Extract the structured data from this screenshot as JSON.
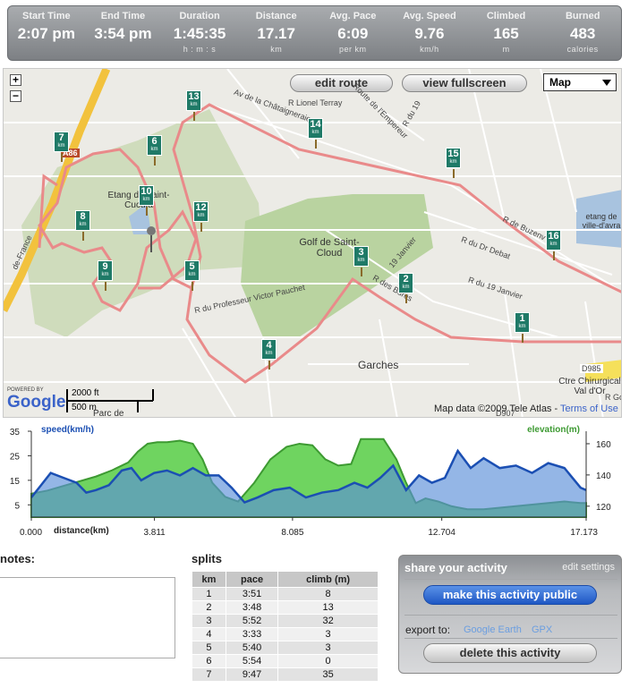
{
  "stats": [
    {
      "label": "Start Time",
      "value": "2:07 pm",
      "unit": ""
    },
    {
      "label": "End Time",
      "value": "3:54 pm",
      "unit": ""
    },
    {
      "label": "Duration",
      "value": "1:45:35",
      "unit": "h : m : s"
    },
    {
      "label": "Distance",
      "value": "17.17",
      "unit": "km"
    },
    {
      "label": "Avg. Pace",
      "value": "6:09",
      "unit": "per km"
    },
    {
      "label": "Avg. Speed",
      "value": "9.76",
      "unit": "km/h"
    },
    {
      "label": "Climbed",
      "value": "165",
      "unit": "m"
    },
    {
      "label": "Burned",
      "value": "483",
      "unit": "calories"
    }
  ],
  "map": {
    "edit_route": "edit route",
    "view_fullscreen": "view fullscreen",
    "map_type": "Map",
    "zoom_in": "+",
    "zoom_out": "−",
    "attribution": "Map data ©2009 Tele Atlas",
    "terms": "Terms of Use",
    "powered_by": "POWERED BY",
    "google": "Google",
    "scale_ft": "2000 ft",
    "scale_m": "500 m",
    "places": {
      "golf": "Golf de Saint-Cloud",
      "etang": "Etang de Saint-Cucufa",
      "garches": "Garches",
      "etang_ville": "etang de ville-d'avra",
      "ctre": "Ctre Chirurgical Val d'Or",
      "parc": "Parc de"
    },
    "streets": [
      "Av de la Châtaigneraie",
      "R Lionel Terray",
      "Route de l'Empereur",
      "R du 19",
      "R de Buzenv",
      "R du Dr Debat",
      "R du 19 Janvier",
      "R du Professeur Victor Pauchet",
      "R des Bures",
      "19 Janvier",
      "A86",
      "de-France",
      "D985",
      "D907",
      "R Gc"
    ],
    "markers": [
      "1",
      "2",
      "3",
      "4",
      "5",
      "6",
      "7",
      "8",
      "9",
      "10",
      "12",
      "13",
      "14",
      "15",
      "16"
    ],
    "marker_unit": "km"
  },
  "chart_data": {
    "type": "area",
    "x_axis_label": "distance(km)",
    "x_ticks": [
      "0.000",
      "3.811",
      "8.085",
      "12.704",
      "17.173"
    ],
    "x_range": [
      0,
      17.173
    ],
    "left_axis": {
      "label": "speed(km/h)",
      "ticks": [
        35,
        25,
        15,
        5
      ],
      "range": [
        0,
        35
      ]
    },
    "right_axis": {
      "label": "elevation(m)",
      "ticks": [
        160,
        140,
        120
      ],
      "range": [
        113,
        168
      ]
    },
    "series": [
      {
        "name": "speed(km/h)",
        "color": "#5b8fd9",
        "x": [
          0,
          0.3,
          0.6,
          1,
          1.4,
          1.7,
          2,
          2.4,
          2.8,
          3.1,
          3.4,
          3.8,
          4.2,
          4.6,
          5,
          5.4,
          5.8,
          6.2,
          6.6,
          7,
          7.5,
          8,
          8.5,
          9,
          9.5,
          10,
          10.4,
          10.8,
          11.2,
          11.6,
          12,
          12.4,
          12.8,
          13.2,
          13.6,
          14,
          14.5,
          15,
          15.5,
          16,
          16.5,
          17,
          17.173
        ],
        "values": [
          8,
          13,
          18,
          16,
          14,
          10,
          11,
          13,
          19,
          20,
          15,
          18,
          19,
          17,
          20,
          17,
          17,
          12,
          6,
          8,
          11,
          12,
          8,
          10,
          11,
          14,
          12,
          16,
          21,
          11,
          17,
          14,
          16,
          27,
          20,
          24,
          20,
          21,
          18,
          22,
          20,
          12,
          11
        ]
      },
      {
        "name": "elevation(m)",
        "color": "#5fcf4f",
        "x": [
          0,
          0.5,
          1,
          1.5,
          2,
          2.5,
          3,
          3.3,
          3.6,
          3.9,
          4.2,
          4.6,
          5,
          5.3,
          5.6,
          6,
          6.4,
          6.9,
          7.4,
          7.9,
          8.3,
          8.7,
          9.1,
          9.5,
          9.9,
          10.2,
          10.5,
          10.9,
          11.3,
          11.6,
          11.9,
          12.2,
          12.6,
          13,
          13.5,
          14,
          14.5,
          15,
          15.5,
          16,
          16.5,
          17,
          17.173
        ],
        "values": [
          128,
          130,
          133,
          136,
          139,
          143,
          148,
          155,
          160,
          161,
          161,
          162,
          160,
          150,
          135,
          126,
          123,
          135,
          150,
          158,
          160,
          159,
          150,
          146,
          147,
          163,
          163,
          163,
          150,
          135,
          122,
          125,
          123,
          120,
          118,
          118,
          119,
          120,
          121,
          122,
          123,
          122,
          122
        ]
      }
    ]
  },
  "notes": {
    "title": "notes:"
  },
  "splits": {
    "title": "splits",
    "headers": [
      "km",
      "pace",
      "climb (m)"
    ],
    "rows": [
      [
        "1",
        "3:51",
        "8"
      ],
      [
        "2",
        "3:48",
        "13"
      ],
      [
        "3",
        "5:52",
        "32"
      ],
      [
        "4",
        "3:33",
        "3"
      ],
      [
        "5",
        "5:40",
        "3"
      ],
      [
        "6",
        "5:54",
        "0"
      ],
      [
        "7",
        "9:47",
        "35"
      ]
    ]
  },
  "share": {
    "title": "share your activity",
    "edit_settings": "edit settings",
    "make_public": "make this activity public",
    "export_label": "export to:",
    "export_links": [
      "Google Earth",
      "GPX"
    ],
    "delete": "delete this activity"
  }
}
